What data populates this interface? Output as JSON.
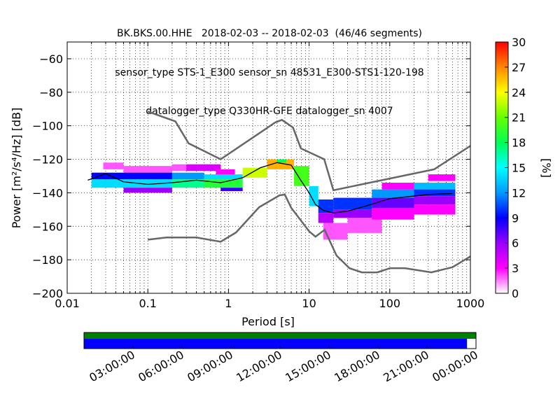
{
  "title_lines": [
    "BK.BKS.00.HHE   2018-02-03 -- 2018-02-03  (46/46 segments)",
    "sensor_type STS-1_E300 sensor_sn 48531_E300-STS1-120-198",
    "datalogger_type Q330HR-GFE datalogger_sn 4007"
  ],
  "chart_data": {
    "type": "heatmap",
    "xlabel": "Period [s]",
    "ylabel": "Power [m²/s⁴/Hz] [dB]",
    "xscale": "log",
    "xlim": [
      0.01,
      1000
    ],
    "ylim": [
      -200,
      -50
    ],
    "xticks": [
      0.01,
      0.1,
      1,
      10,
      100,
      1000
    ],
    "xtick_labels": [
      "0.01",
      "0.1",
      "1",
      "10",
      "100",
      "1000"
    ],
    "yticks": [
      -200,
      -180,
      -160,
      -140,
      -120,
      -100,
      -80,
      -60
    ],
    "ytick_labels": [
      "−200",
      "−180",
      "−160",
      "−140",
      "−120",
      "−100",
      "−80",
      "−60"
    ],
    "grid": true,
    "colorbar": {
      "label": "[%]",
      "ticks": [
        "0",
        "3",
        "6",
        "9",
        "12",
        "15",
        "18",
        "21",
        "24",
        "27",
        "30"
      ],
      "range": [
        0,
        30
      ],
      "colormap": [
        "#ffffff",
        "#ff00ff",
        "#9900ff",
        "#0000ff",
        "#0099ff",
        "#00ffff",
        "#00ff55",
        "#66ff00",
        "#ffff00",
        "#ff8800",
        "#ff0000"
      ]
    },
    "noise_model_high": [
      [
        0.1,
        -91.5
      ],
      [
        0.22,
        -97.4
      ],
      [
        0.32,
        -110.5
      ],
      [
        0.8,
        -120
      ],
      [
        3.8,
        -98
      ],
      [
        4.6,
        -96.5
      ],
      [
        6.3,
        -101
      ],
      [
        7.9,
        -113.5
      ],
      [
        15.4,
        -120
      ],
      [
        20,
        -138.5
      ],
      [
        354.8,
        -126
      ],
      [
        1000,
        -112
      ]
    ],
    "noise_model_low": [
      [
        0.1,
        -168
      ],
      [
        0.17,
        -166.7
      ],
      [
        0.4,
        -166.7
      ],
      [
        0.8,
        -169.2
      ],
      [
        1.24,
        -163.7
      ],
      [
        2.4,
        -148.6
      ],
      [
        4.3,
        -141.5
      ],
      [
        5.0,
        -141.1
      ],
      [
        6.0,
        -149
      ],
      [
        10,
        -163
      ],
      [
        12,
        -166.2
      ],
      [
        15.6,
        -162.1
      ],
      [
        21.9,
        -177.5
      ],
      [
        31.6,
        -185
      ],
      [
        45,
        -187.5
      ],
      [
        70,
        -187.5
      ],
      [
        101,
        -185
      ],
      [
        154,
        -185
      ],
      [
        328,
        -187.5
      ],
      [
        600,
        -184.4
      ],
      [
        1000,
        -178
      ]
    ],
    "mean_curve": [
      [
        0.018,
        -132.5
      ],
      [
        0.03,
        -128.5
      ],
      [
        0.05,
        -133.5
      ],
      [
        0.1,
        -135
      ],
      [
        0.2,
        -134
      ],
      [
        0.4,
        -132.5
      ],
      [
        0.8,
        -134
      ],
      [
        1.5,
        -131
      ],
      [
        2.5,
        -125
      ],
      [
        4.0,
        -122
      ],
      [
        6.0,
        -123.5
      ],
      [
        8.0,
        -133
      ],
      [
        10,
        -140
      ],
      [
        12,
        -147
      ],
      [
        15,
        -150.5
      ],
      [
        20,
        -152
      ],
      [
        30,
        -151
      ],
      [
        50,
        -148
      ],
      [
        100,
        -143.5
      ],
      [
        300,
        -141
      ],
      [
        600,
        -140.5
      ]
    ],
    "density_cells": [
      {
        "x0": 0.028,
        "x1": 0.05,
        "y0": -126,
        "y1": -122,
        "v": 2
      },
      {
        "x0": 0.05,
        "x1": 0.2,
        "y0": -128,
        "y1": -124,
        "v": 2
      },
      {
        "x0": 0.2,
        "x1": 0.3,
        "y0": -127,
        "y1": -123,
        "v": 2
      },
      {
        "x0": 0.3,
        "x1": 0.8,
        "y0": -127,
        "y1": -123,
        "v": 4
      },
      {
        "x0": 0.7,
        "x1": 1.2,
        "y0": -130,
        "y1": -126,
        "v": 3
      },
      {
        "x0": 0.02,
        "x1": 0.2,
        "y0": -132,
        "y1": -128,
        "v": 9
      },
      {
        "x0": 0.02,
        "x1": 0.2,
        "y0": -137,
        "y1": -132,
        "v": 14
      },
      {
        "x0": 0.05,
        "x1": 0.2,
        "y0": -140,
        "y1": -137,
        "v": 6
      },
      {
        "x0": 0.2,
        "x1": 0.5,
        "y0": -132,
        "y1": -128,
        "v": 12
      },
      {
        "x0": 0.2,
        "x1": 0.5,
        "y0": -137,
        "y1": -132,
        "v": 17
      },
      {
        "x0": 0.5,
        "x1": 1.5,
        "y0": -132,
        "y1": -129,
        "v": 14
      },
      {
        "x0": 0.5,
        "x1": 1.5,
        "y0": -137,
        "y1": -132,
        "v": 19
      },
      {
        "x0": 0.8,
        "x1": 1.5,
        "y0": -139,
        "y1": -137,
        "v": 8
      },
      {
        "x0": 1.5,
        "x1": 3,
        "y0": -131,
        "y1": -125,
        "v": 23
      },
      {
        "x0": 3,
        "x1": 6.5,
        "y0": -126,
        "y1": -120,
        "v": 26
      },
      {
        "x0": 4,
        "x1": 5.2,
        "y0": -122,
        "y1": -120,
        "v": 18
      },
      {
        "x0": 6.5,
        "x1": 10,
        "y0": -136,
        "y1": -124,
        "v": 20
      },
      {
        "x0": 10,
        "x1": 13,
        "y0": -148,
        "y1": -136,
        "v": 14
      },
      {
        "x0": 13,
        "x1": 20,
        "y0": -152,
        "y1": -144,
        "v": 10
      },
      {
        "x0": 13,
        "x1": 20,
        "y0": -158,
        "y1": -152,
        "v": 5
      },
      {
        "x0": 15,
        "x1": 30,
        "y0": -168,
        "y1": -158,
        "v": 2
      },
      {
        "x0": 20,
        "x1": 60,
        "y0": -150,
        "y1": -143,
        "v": 10
      },
      {
        "x0": 20,
        "x1": 60,
        "y0": -155,
        "y1": -150,
        "v": 6
      },
      {
        "x0": 30,
        "x1": 80,
        "y0": -164,
        "y1": -155,
        "v": 2
      },
      {
        "x0": 60,
        "x1": 200,
        "y0": -143,
        "y1": -138,
        "v": 12
      },
      {
        "x0": 60,
        "x1": 200,
        "y0": -149,
        "y1": -143,
        "v": 7
      },
      {
        "x0": 60,
        "x1": 200,
        "y0": -156,
        "y1": -149,
        "v": 3
      },
      {
        "x0": 80,
        "x1": 200,
        "y0": -138,
        "y1": -134,
        "v": 3
      },
      {
        "x0": 200,
        "x1": 650,
        "y0": -138,
        "y1": -134,
        "v": 13
      },
      {
        "x0": 200,
        "x1": 650,
        "y0": -142,
        "y1": -138,
        "v": 10
      },
      {
        "x0": 200,
        "x1": 650,
        "y0": -147,
        "y1": -142,
        "v": 6
      },
      {
        "x0": 200,
        "x1": 650,
        "y0": -153,
        "y1": -147,
        "v": 3
      },
      {
        "x0": 300,
        "x1": 650,
        "y0": -133,
        "y1": -129,
        "v": 3
      }
    ]
  },
  "timeline": {
    "ticks": [
      "03:00:00",
      "06:00:00",
      "09:00:00",
      "12:00:00",
      "15:00:00",
      "18:00:00",
      "21:00:00",
      "00:00:00"
    ],
    "data_coverage_color": "#0000ff",
    "gap_bar_color": "#008000",
    "coverage_fraction": 0.977
  }
}
